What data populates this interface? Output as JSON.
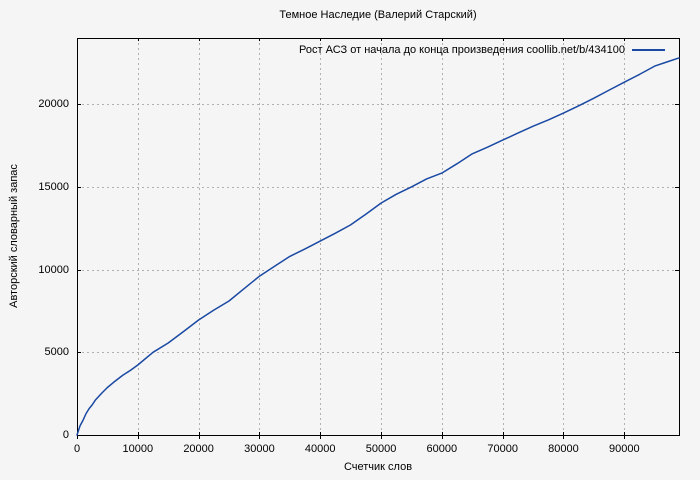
{
  "chart_data": {
    "type": "line",
    "title": "Темное Наследие (Валерий Старский)",
    "xlabel": "Счетчик слов",
    "ylabel": "Авторский словарный запас",
    "legend": {
      "label": "Рост АСЗ от начала до конца произведения coollib.net/b/434100",
      "position": "top-right-inside"
    },
    "xlim": [
      0,
      99000
    ],
    "ylim": [
      0,
      24000
    ],
    "grid": true,
    "background_color": "#f5f5f5",
    "grid_color": "#b0b0b0",
    "border_color": "#000000",
    "line_color": "#1a49a3",
    "xticks": [
      {
        "value": 0,
        "label": "0"
      },
      {
        "value": 10000,
        "label": "10000"
      },
      {
        "value": 20000,
        "label": "20000"
      },
      {
        "value": 30000,
        "label": "30000"
      },
      {
        "value": 40000,
        "label": "40000"
      },
      {
        "value": 50000,
        "label": "50000"
      },
      {
        "value": 60000,
        "label": "60000"
      },
      {
        "value": 70000,
        "label": "70000"
      },
      {
        "value": 80000,
        "label": "80000"
      },
      {
        "value": 90000,
        "label": "90000"
      }
    ],
    "yticks": [
      {
        "value": 0,
        "label": "0"
      },
      {
        "value": 5000,
        "label": "5000"
      },
      {
        "value": 10000,
        "label": "10000"
      },
      {
        "value": 15000,
        "label": "15000"
      },
      {
        "value": 20000,
        "label": "20000"
      }
    ],
    "series": [
      {
        "name": "Рост АСЗ от начала до конца произведения coollib.net/b/434100",
        "points": [
          [
            0,
            0
          ],
          [
            500,
            550
          ],
          [
            1000,
            900
          ],
          [
            1500,
            1300
          ],
          [
            2000,
            1600
          ],
          [
            2500,
            1820
          ],
          [
            3000,
            2100
          ],
          [
            4000,
            2500
          ],
          [
            5000,
            2870
          ],
          [
            6000,
            3180
          ],
          [
            7500,
            3600
          ],
          [
            8750,
            3900
          ],
          [
            10000,
            4230
          ],
          [
            12500,
            5000
          ],
          [
            15000,
            5560
          ],
          [
            17500,
            6250
          ],
          [
            20000,
            6950
          ],
          [
            22500,
            7550
          ],
          [
            25000,
            8100
          ],
          [
            27500,
            8850
          ],
          [
            30000,
            9600
          ],
          [
            32500,
            10200
          ],
          [
            35000,
            10800
          ],
          [
            37500,
            11250
          ],
          [
            40000,
            11720
          ],
          [
            42500,
            12200
          ],
          [
            45000,
            12700
          ],
          [
            47500,
            13350
          ],
          [
            50000,
            14020
          ],
          [
            52500,
            14550
          ],
          [
            55000,
            15000
          ],
          [
            57500,
            15480
          ],
          [
            60000,
            15830
          ],
          [
            62500,
            16400
          ],
          [
            65000,
            17000
          ],
          [
            67500,
            17400
          ],
          [
            70000,
            17830
          ],
          [
            72500,
            18250
          ],
          [
            75000,
            18670
          ],
          [
            77500,
            19050
          ],
          [
            80000,
            19460
          ],
          [
            82500,
            19900
          ],
          [
            85000,
            20360
          ],
          [
            87500,
            20850
          ],
          [
            90000,
            21330
          ],
          [
            92500,
            21800
          ],
          [
            95000,
            22300
          ],
          [
            97000,
            22550
          ],
          [
            99000,
            22800
          ]
        ]
      }
    ]
  }
}
